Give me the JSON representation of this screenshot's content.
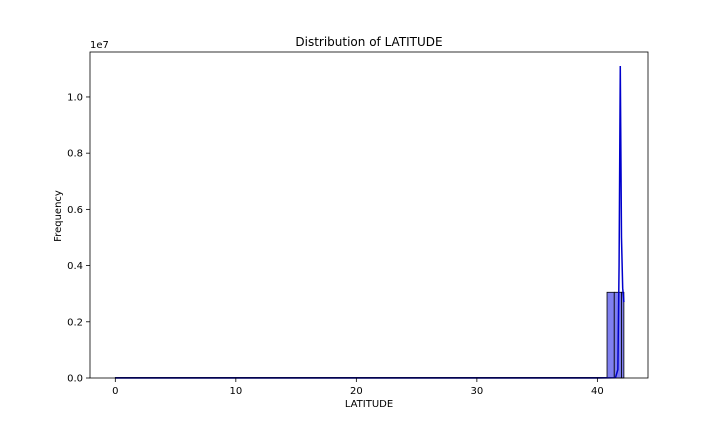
{
  "chart_data": {
    "type": "bar",
    "title": "Distribution of LATITUDE",
    "xlabel": "LATITUDE",
    "ylabel": "Frequency",
    "y_offset_text": "1e7",
    "xlim": [
      -2.1,
      44.2
    ],
    "ylim": [
      0,
      11.6
    ],
    "x_ticks": [
      0,
      10,
      20,
      30,
      40
    ],
    "x_tick_labels": [
      "0",
      "10",
      "20",
      "30",
      "40"
    ],
    "y_ticks": [
      0.0,
      2.0,
      4.0,
      6.0,
      8.0,
      10.0
    ],
    "y_tick_labels": [
      "0.0",
      "0.2",
      "0.4",
      "0.6",
      "0.8",
      "1.0"
    ],
    "grid": false,
    "bar_color": "#8080f0",
    "kde_color": "#0000cc",
    "bins": [
      {
        "x0": 0.0,
        "x1": 40.8,
        "count": 0.02
      },
      {
        "x0": 40.8,
        "x1": 41.4,
        "count": 3.05
      },
      {
        "x0": 41.4,
        "x1": 42.0,
        "count": 3.05
      },
      {
        "x0": 42.0,
        "x1": 42.2,
        "count": 3.05
      }
    ],
    "kde": {
      "x": [
        0.0,
        40.0,
        41.5,
        41.7,
        41.8,
        41.9,
        42.0,
        42.1,
        42.2
      ],
      "y": [
        0.0,
        0.0,
        0.01,
        0.3,
        4.0,
        11.1,
        5.0,
        3.2,
        2.7
      ]
    }
  }
}
